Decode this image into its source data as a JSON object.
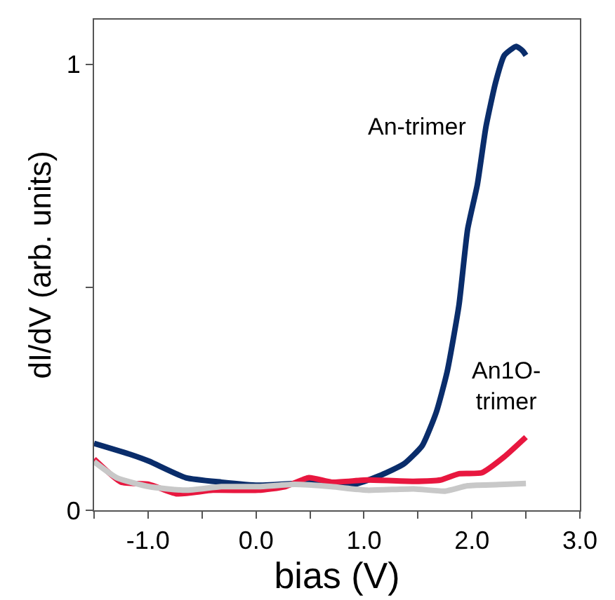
{
  "chart_data": {
    "type": "line",
    "xlabel": "bias (V)",
    "ylabel": "dI/dV (arb. units)",
    "xlim": [
      -1.5,
      3.0
    ],
    "ylim": [
      0,
      1.1
    ],
    "xticks": [
      {
        "value": -1.5,
        "label": null
      },
      {
        "value": -1.0,
        "label": "-1.0"
      },
      {
        "value": -0.5,
        "label": null
      },
      {
        "value": 0.0,
        "label": "0.0"
      },
      {
        "value": 0.5,
        "label": null
      },
      {
        "value": 1.0,
        "label": "1.0"
      },
      {
        "value": 1.5,
        "label": null
      },
      {
        "value": 2.0,
        "label": "2.0"
      },
      {
        "value": 2.5,
        "label": null
      },
      {
        "value": 3.0,
        "label": "3.0"
      }
    ],
    "yticks": [
      0,
      {
        "value": 0.5,
        "label": null
      },
      1
    ],
    "legend": false,
    "series": [
      {
        "name": "An-trimer",
        "color": "#0a2d6b",
        "x": [
          -1.5,
          -1.16,
          -0.99,
          -0.65,
          -0.32,
          0.02,
          0.61,
          0.91,
          1.16,
          1.37,
          1.54,
          1.67,
          1.77,
          1.88,
          1.96,
          2.05,
          2.13,
          2.22,
          2.3,
          2.41,
          2.47,
          2.5
        ],
        "values": [
          0.15,
          0.125,
          0.11,
          0.073,
          0.063,
          0.056,
          0.063,
          0.058,
          0.079,
          0.104,
          0.145,
          0.22,
          0.31,
          0.46,
          0.63,
          0.73,
          0.86,
          0.96,
          1.02,
          1.04,
          1.03,
          1.02
        ]
      },
      {
        "name": "An1O-\ntrimer",
        "color": "#e8173f",
        "x": [
          -1.5,
          -1.25,
          -0.99,
          -0.74,
          -0.4,
          0.02,
          0.27,
          0.49,
          0.7,
          1.03,
          1.46,
          1.71,
          1.88,
          2.09,
          2.3,
          2.5
        ],
        "values": [
          0.115,
          0.063,
          0.058,
          0.037,
          0.045,
          0.045,
          0.053,
          0.073,
          0.063,
          0.068,
          0.065,
          0.068,
          0.082,
          0.084,
          0.12,
          0.164
        ]
      },
      {
        "color": "#c8c8c8",
        "x": [
          -1.5,
          -1.29,
          -0.99,
          -0.65,
          -0.32,
          0.02,
          0.36,
          0.7,
          1.03,
          1.46,
          1.75,
          1.96,
          2.3,
          2.5
        ],
        "values": [
          0.109,
          0.073,
          0.053,
          0.045,
          0.053,
          0.053,
          0.058,
          0.053,
          0.045,
          0.048,
          0.043,
          0.055,
          0.058,
          0.06
        ]
      }
    ]
  }
}
